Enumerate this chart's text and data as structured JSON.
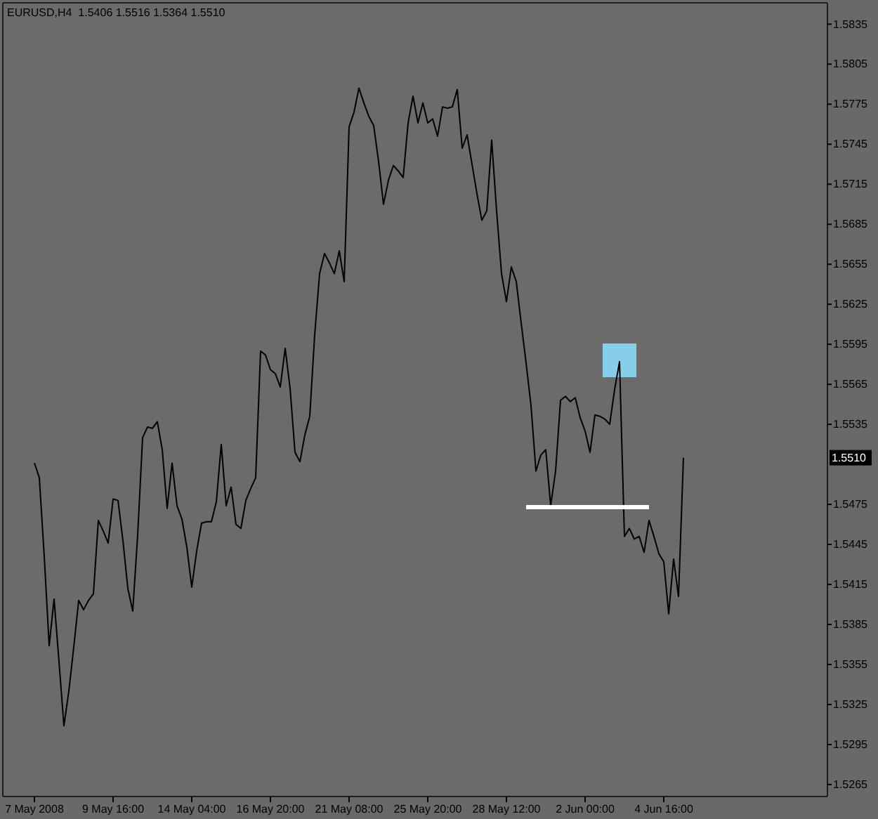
{
  "chart_data": {
    "type": "line",
    "title": "EURUSD,H4  1.5406 1.5516 1.5364 1.5510",
    "categories": [
      "7 May 2008",
      null,
      null,
      null,
      null,
      null,
      null,
      null,
      null,
      null,
      null,
      null,
      null,
      null,
      null,
      null,
      "9 May 16:00",
      null,
      null,
      null,
      null,
      null,
      null,
      null,
      null,
      null,
      null,
      null,
      null,
      null,
      null,
      null,
      "14 May 04:00",
      null,
      null,
      null,
      null,
      null,
      null,
      null,
      null,
      null,
      null,
      null,
      null,
      null,
      null,
      null,
      "16 May 20:00",
      null,
      null,
      null,
      null,
      null,
      null,
      null,
      null,
      null,
      null,
      null,
      null,
      null,
      null,
      null,
      "21 May 08:00",
      null,
      null,
      null,
      null,
      null,
      null,
      null,
      null,
      null,
      null,
      null,
      null,
      null,
      null,
      null,
      "25 May 20:00",
      null,
      null,
      null,
      null,
      null,
      null,
      null,
      null,
      null,
      null,
      null,
      null,
      null,
      null,
      null,
      "28 May 12:00",
      null,
      null,
      null,
      null,
      null,
      null,
      null,
      null,
      null,
      null,
      null,
      null,
      null,
      null,
      null,
      "2 Jun 00:00",
      null,
      null,
      null,
      null,
      null,
      null,
      null,
      null,
      null,
      null,
      null,
      null,
      null,
      null,
      null,
      "4 Jun 16:00",
      null,
      null,
      null,
      null
    ],
    "series": [
      {
        "type": "line",
        "color": "#000000",
        "values": [
          1.5506,
          1.5495,
          1.5436,
          1.5369,
          1.5404,
          1.5357,
          1.5309,
          1.5335,
          1.5368,
          1.5403,
          1.5396,
          1.5403,
          1.5408,
          1.5463,
          1.5455,
          1.5446,
          1.5479,
          1.5478,
          1.5448,
          1.5412,
          1.5395,
          1.5452,
          1.5525,
          1.5533,
          1.5532,
          1.5537,
          1.5516,
          1.5472,
          1.5506,
          1.5474,
          1.5464,
          1.5443,
          1.5413,
          1.544,
          1.5461,
          1.5462,
          1.5462,
          1.5477,
          1.552,
          1.5474,
          1.5488,
          1.546,
          1.5457,
          1.5478,
          1.5487,
          1.5495,
          1.559,
          1.5587,
          1.5576,
          1.5573,
          1.5563,
          1.5592,
          1.5562,
          1.5514,
          1.5507,
          1.5527,
          1.5541,
          1.5602,
          1.5648,
          1.5663,
          1.5656,
          1.5648,
          1.5665,
          1.5642,
          1.5758,
          1.5769,
          1.5787,
          1.5776,
          1.5766,
          1.5759,
          1.5732,
          1.57,
          1.5718,
          1.5729,
          1.5725,
          1.572,
          1.5761,
          1.5781,
          1.5761,
          1.5776,
          1.5761,
          1.5764,
          1.5751,
          1.5773,
          1.5772,
          1.5773,
          1.5786,
          1.5742,
          1.5752,
          1.573,
          1.5708,
          1.5688,
          1.5695,
          1.5748,
          1.5695,
          1.5648,
          1.5627,
          1.5653,
          1.5642,
          1.5611,
          1.5581,
          1.5549,
          1.55,
          1.5512,
          1.5516,
          1.5474,
          1.55,
          1.5553,
          1.5556,
          1.5552,
          1.5555,
          1.554,
          1.553,
          1.5514,
          1.5542,
          1.5541,
          1.5539,
          1.5535,
          1.5561,
          1.5582,
          1.5451,
          1.5457,
          1.5449,
          1.5451,
          1.5439,
          1.5463,
          1.5451,
          1.5438,
          1.5432,
          1.5393,
          1.5434,
          1.5406,
          1.551
        ]
      },
      {
        "type": "line",
        "color": "#ffffff",
        "values": [
          null,
          null,
          null,
          null,
          null,
          null,
          null,
          null,
          null,
          null,
          null,
          null,
          null,
          null,
          null,
          null,
          null,
          null,
          null,
          null,
          null,
          null,
          null,
          null,
          null,
          null,
          null,
          null,
          null,
          null,
          null,
          null,
          null,
          null,
          null,
          null,
          null,
          null,
          null,
          null,
          null,
          null,
          null,
          null,
          null,
          null,
          null,
          null,
          null,
          null,
          null,
          null,
          null,
          null,
          null,
          null,
          null,
          null,
          null,
          null,
          null,
          null,
          null,
          null,
          null,
          null,
          null,
          null,
          null,
          null,
          null,
          null,
          null,
          null,
          null,
          null,
          null,
          null,
          null,
          null,
          null,
          null,
          null,
          null,
          null,
          null,
          null,
          null,
          null,
          null,
          null,
          null,
          null,
          null,
          null,
          null,
          null,
          null,
          null,
          null,
          1.5473,
          1.5473,
          1.5473,
          1.5473,
          1.5473,
          1.5473,
          1.5473,
          1.5473,
          1.5473,
          1.5473,
          1.5473,
          1.5473,
          1.5473,
          1.5473,
          1.5473,
          1.5473,
          1.5473,
          1.5473,
          1.5473,
          1.5473,
          1.5473,
          1.5473,
          1.5473,
          1.5473,
          1.5473,
          1.5473,
          null,
          null,
          null,
          null,
          null,
          null,
          null
        ]
      },
      {
        "type": "scatter",
        "color": "#87ceeb",
        "marker": "square",
        "values": [
          null,
          null,
          null,
          null,
          null,
          null,
          null,
          null,
          null,
          null,
          null,
          null,
          null,
          null,
          null,
          null,
          null,
          null,
          null,
          null,
          null,
          null,
          null,
          null,
          null,
          null,
          null,
          null,
          null,
          null,
          null,
          null,
          null,
          null,
          null,
          null,
          null,
          null,
          null,
          null,
          null,
          null,
          null,
          null,
          null,
          null,
          null,
          null,
          null,
          null,
          null,
          null,
          null,
          null,
          null,
          null,
          null,
          null,
          null,
          null,
          null,
          null,
          null,
          null,
          null,
          null,
          null,
          null,
          null,
          null,
          null,
          null,
          null,
          null,
          null,
          null,
          null,
          null,
          null,
          null,
          null,
          null,
          null,
          null,
          null,
          null,
          null,
          null,
          null,
          null,
          null,
          null,
          null,
          null,
          null,
          null,
          null,
          null,
          null,
          null,
          null,
          null,
          null,
          null,
          null,
          null,
          null,
          null,
          null,
          null,
          null,
          null,
          null,
          null,
          null,
          null,
          null,
          null,
          null,
          1.5583,
          null,
          null,
          null,
          null,
          null,
          null,
          null,
          null,
          null,
          null,
          null,
          null,
          null
        ]
      }
    ],
    "ylim": [
      1.5256,
      1.5851
    ],
    "yticks": [
      1.5835,
      1.5805,
      1.5775,
      1.5745,
      1.5715,
      1.5685,
      1.5655,
      1.5625,
      1.5595,
      1.5565,
      1.5535,
      1.5475,
      1.5445,
      1.5415,
      1.5385,
      1.5355,
      1.5325,
      1.5295,
      1.5265
    ],
    "annotations": [
      "1.5510"
    ]
  }
}
